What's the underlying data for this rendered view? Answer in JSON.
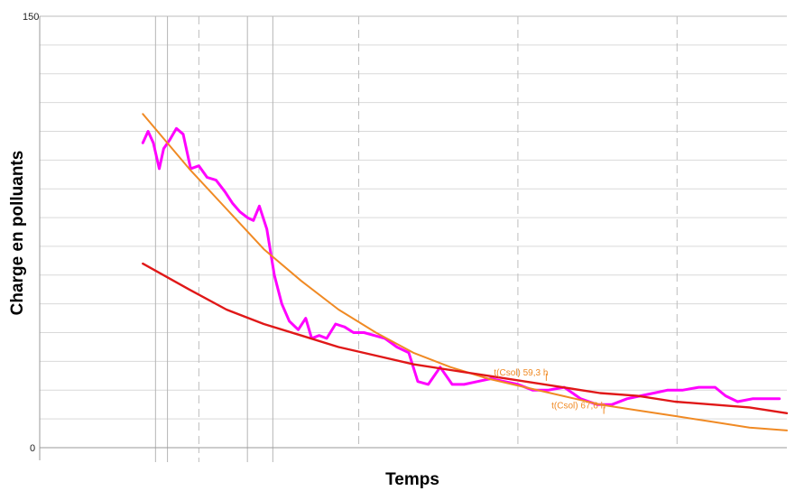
{
  "chart_data": {
    "type": "line",
    "xlabel": "Temps",
    "ylabel": "Charge en polluants",
    "xlim": [
      0,
      100
    ],
    "ylim": [
      0,
      150
    ],
    "y_ticks": [
      "150",
      "0"
    ],
    "grid": true,
    "colors": {
      "measured": "#ff00ff",
      "fit_exponential": "#f08a24",
      "fit_second": "#e01818",
      "grid_major": "#bdbdbd",
      "grid_minor": "#d9d9d9"
    },
    "annotations": [
      {
        "text": "t(Csol) 59,3 h",
        "x": 67.8,
        "y": 24.5,
        "color": "#f08a24"
      },
      {
        "text": "t(Csol) 67,6 h",
        "x": 75.5,
        "y": 13,
        "color": "#f08a24"
      }
    ],
    "series": [
      {
        "key": "measured",
        "x": [
          13.8,
          14.5,
          15.2,
          16.0,
          16.6,
          17.4,
          18.3,
          19.2,
          20.2,
          21.3,
          22.4,
          23.6,
          24.8,
          25.8,
          26.8,
          27.8,
          28.6,
          29.4,
          30.4,
          31.4,
          32.4,
          33.4,
          34.6,
          35.6,
          36.4,
          37.4,
          38.4,
          39.6,
          40.8,
          42.0,
          43.4,
          44.8,
          46.2,
          47.8,
          49.4,
          50.6,
          52.0,
          53.6,
          55.2,
          56.8,
          58.6,
          60.4,
          62.2,
          64.0,
          66.0,
          68.0,
          70.2,
          72.4,
          74.6,
          76.6,
          78.6,
          80.4,
          82.2,
          84.0,
          86.0,
          88.2,
          90.4,
          91.8,
          93.4,
          95.4,
          97.2,
          99.0
        ],
        "y": [
          106,
          110,
          106,
          97,
          104,
          107,
          111,
          109,
          97,
          98,
          94,
          93,
          89,
          85,
          82,
          80,
          79,
          84,
          76,
          60,
          50,
          44,
          41,
          45,
          38,
          39,
          38,
          43,
          42,
          40,
          40,
          39,
          38,
          35,
          33,
          23,
          22,
          28,
          22,
          22,
          23,
          24,
          23,
          22,
          20,
          20,
          21,
          17,
          15,
          15,
          17,
          18,
          19,
          20,
          20,
          21,
          21,
          18,
          16,
          17,
          17,
          17
        ]
      },
      {
        "key": "fit_exponential",
        "x": [
          13.8,
          20,
          25,
          30,
          35,
          40,
          45,
          50,
          55,
          60,
          65,
          70,
          75,
          80,
          85,
          90,
          95,
          100
        ],
        "y": [
          116,
          97,
          83,
          69,
          58,
          48,
          40,
          33,
          28,
          24,
          21,
          18,
          15,
          13,
          11,
          9,
          7,
          6
        ]
      },
      {
        "key": "fit_second",
        "x": [
          13.8,
          20,
          25,
          30,
          35,
          40,
          45,
          50,
          55,
          60,
          65,
          70,
          75,
          80,
          85,
          90,
          95,
          100
        ],
        "y": [
          64,
          55,
          48,
          43,
          39,
          35,
          32,
          29,
          27,
          25,
          23,
          21,
          19,
          18,
          16,
          15,
          14,
          12
        ]
      }
    ]
  }
}
